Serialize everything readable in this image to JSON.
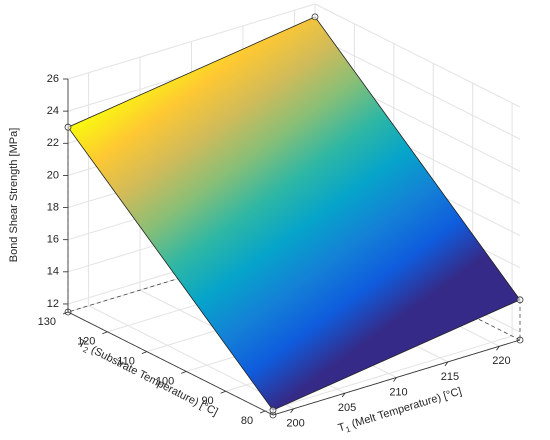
{
  "chart_data": {
    "type": "surface",
    "zlabel": "Bond Shear Strength [MPa]",
    "xlabel": {
      "symbol": "T",
      "subscript": "1",
      "text": " (Melt Temperature) [°C]"
    },
    "ylabel": {
      "symbol": "T",
      "subscript": "2",
      "text": " (Substrate Temperature) [°C]"
    },
    "x": [
      198,
      222
    ],
    "y": [
      78,
      130
    ],
    "z": [
      [
        11.8,
        14.0
      ],
      [
        23.0,
        25.2
      ]
    ],
    "xlim": [
      198,
      222
    ],
    "ylim": [
      78,
      130
    ],
    "zlim": [
      11.5,
      26
    ],
    "xticks": [
      200,
      205,
      210,
      215,
      220
    ],
    "yticks": [
      80,
      90,
      100,
      110,
      120,
      130
    ],
    "zticks": [
      12,
      14,
      16,
      18,
      20,
      22,
      24,
      26
    ],
    "grid": true,
    "colormap": [
      "#352a87",
      "#0f5cdd",
      "#1481d6",
      "#06a4ca",
      "#2eb7a4",
      "#87bf77",
      "#d1bb59",
      "#fec832",
      "#f9fb0e"
    ]
  }
}
